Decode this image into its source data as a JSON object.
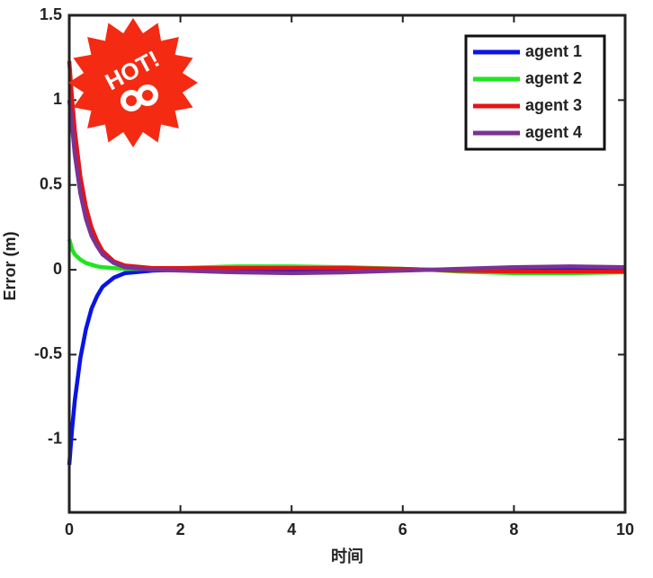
{
  "chart_data": {
    "type": "line",
    "x_label": "时间",
    "y_label": "Error (m)",
    "x": [
      0,
      0.05,
      0.1,
      0.2,
      0.3,
      0.4,
      0.5,
      0.6,
      0.8,
      1,
      1.5,
      2,
      3,
      4,
      5,
      6,
      6.5,
      7,
      8,
      9,
      10
    ],
    "series": [
      {
        "name": "agent 1",
        "color": "#0a14e6",
        "values": [
          -1.15,
          -0.94,
          -0.77,
          -0.52,
          -0.35,
          -0.23,
          -0.155,
          -0.1,
          -0.047,
          -0.02,
          -0.005,
          0,
          -0.005,
          -0.005,
          0,
          0,
          0,
          0,
          0.005,
          0.005,
          0
        ]
      },
      {
        "name": "agent 2",
        "color": "#1ee61e",
        "values": [
          0.18,
          0.12,
          0.09,
          0.06,
          0.04,
          0.03,
          0.02,
          0.015,
          0.01,
          0.005,
          0.005,
          0.01,
          0.02,
          0.02,
          0.015,
          0.005,
          0,
          -0.01,
          -0.02,
          -0.02,
          -0.015
        ]
      },
      {
        "name": "agent 3",
        "color": "#e61414",
        "values": [
          1.23,
          1.01,
          0.82,
          0.55,
          0.37,
          0.25,
          0.17,
          0.11,
          0.05,
          0.025,
          0.01,
          0.01,
          0.01,
          0.01,
          0.01,
          0.005,
          0,
          -0.005,
          -0.01,
          -0.01,
          -0.01
        ]
      },
      {
        "name": "agent 4",
        "color": "#7b3294",
        "values": [
          1.0,
          0.85,
          0.68,
          0.45,
          0.3,
          0.2,
          0.14,
          0.09,
          0.04,
          0.015,
          0,
          -0.005,
          -0.015,
          -0.02,
          -0.015,
          -0.005,
          0,
          0.005,
          0.015,
          0.02,
          0.015
        ]
      }
    ],
    "xlim": [
      0,
      10
    ],
    "xticks": [
      0,
      2,
      4,
      6,
      8,
      10
    ],
    "ylim": [
      -1.43,
      1.5
    ],
    "yticks": [
      -1,
      -0.5,
      0,
      0.5,
      1,
      1.5
    ],
    "legend": "top-right",
    "grid": false,
    "badge": "HOT!"
  }
}
